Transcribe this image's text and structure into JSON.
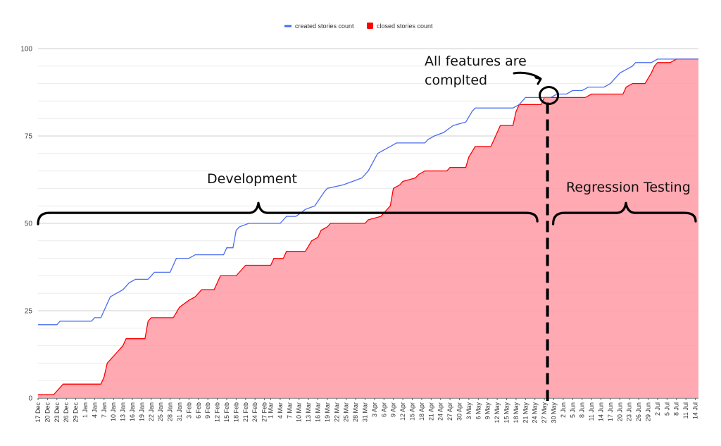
{
  "chart_data": {
    "type": "area",
    "x_range": [
      "17 Dec",
      "15 Jul"
    ],
    "x_tick_labels": [
      "17 Dec",
      "20 Dec",
      "23 Dec",
      "26 Dec",
      "29 Dec",
      "1 Jan",
      "4 Jan",
      "7 Jan",
      "10 Jan",
      "13 Jan",
      "16 Jan",
      "19 Jan",
      "22 Jan",
      "25 Jan",
      "28 Jan",
      "31 Jan",
      "3 Feb",
      "6 Feb",
      "9 Feb",
      "12 Feb",
      "15 Feb",
      "18 Feb",
      "21 Feb",
      "24 Feb",
      "27 Feb",
      "1 Mar",
      "4 Mar",
      "7 Mar",
      "10 Mar",
      "13 Mar",
      "16 Mar",
      "19 Mar",
      "22 Mar",
      "25 Mar",
      "28 Mar",
      "31 Mar",
      "3 Apr",
      "6 Apr",
      "9 Apr",
      "12 Apr",
      "15 Apr",
      "18 Apr",
      "21 Apr",
      "24 Apr",
      "27 Apr",
      "30 Apr",
      "3 May",
      "6 May",
      "9 May",
      "12 May",
      "15 May",
      "18 May",
      "21 May",
      "24 May",
      "27 May",
      "30 May",
      "2 Jun",
      "5 Jun",
      "8 Jun",
      "11 Jun",
      "14 Jun",
      "17 Jun",
      "20 Jun",
      "23 Jun",
      "26 Jun",
      "29 Jun",
      "2 Jul",
      "5 Jul",
      "8 Jul",
      "11 Jul",
      "14 Jul"
    ],
    "y_ticks": [
      0,
      25,
      50,
      75,
      100
    ],
    "ylim": [
      0,
      100
    ],
    "grid": true,
    "legend_position": "top-center",
    "series": [
      {
        "name": "created stories count",
        "color": "#4a6cf0",
        "style": "line",
        "points": [
          [
            "17 Dec",
            21
          ],
          [
            "23 Dec",
            21
          ],
          [
            "24 Dec",
            22
          ],
          [
            "3 Jan",
            22
          ],
          [
            "4 Jan",
            23
          ],
          [
            "6 Jan",
            23
          ],
          [
            "9 Jan",
            29
          ],
          [
            "11 Jan",
            30
          ],
          [
            "13 Jan",
            31
          ],
          [
            "15 Jan",
            33
          ],
          [
            "17 Jan",
            34
          ],
          [
            "21 Jan",
            34
          ],
          [
            "23 Jan",
            36
          ],
          [
            "28 Jan",
            36
          ],
          [
            "30 Jan",
            40
          ],
          [
            "3 Feb",
            40
          ],
          [
            "5 Feb",
            41
          ],
          [
            "14 Feb",
            41
          ],
          [
            "15 Feb",
            43
          ],
          [
            "17 Feb",
            43
          ],
          [
            "18 Feb",
            48
          ],
          [
            "19 Feb",
            49
          ],
          [
            "22 Feb",
            50
          ],
          [
            "4 Mar",
            50
          ],
          [
            "6 Mar",
            52
          ],
          [
            "9 Mar",
            52
          ],
          [
            "12 Mar",
            54
          ],
          [
            "15 Mar",
            55
          ],
          [
            "18 Mar",
            59
          ],
          [
            "19 Mar",
            60
          ],
          [
            "24 Mar",
            61
          ],
          [
            "27 Mar",
            62
          ],
          [
            "30 Mar",
            63
          ],
          [
            "1 Apr",
            65
          ],
          [
            "4 Apr",
            70
          ],
          [
            "6 Apr",
            71
          ],
          [
            "8 Apr",
            72
          ],
          [
            "10 Apr",
            73
          ],
          [
            "19 Apr",
            73
          ],
          [
            "20 Apr",
            74
          ],
          [
            "22 Apr",
            75
          ],
          [
            "25 Apr",
            76
          ],
          [
            "28 Apr",
            78
          ],
          [
            "2 May",
            79
          ],
          [
            "4 May",
            82
          ],
          [
            "5 May",
            83
          ],
          [
            "17 May",
            83
          ],
          [
            "19 May",
            84
          ],
          [
            "21 May",
            86
          ],
          [
            "29 May",
            86
          ],
          [
            "31 May",
            87
          ],
          [
            "3 Jun",
            87
          ],
          [
            "5 Jun",
            88
          ],
          [
            "8 Jun",
            88
          ],
          [
            "10 Jun",
            89
          ],
          [
            "15 Jun",
            89
          ],
          [
            "17 Jun",
            90
          ],
          [
            "20 Jun",
            93
          ],
          [
            "24 Jun",
            95
          ],
          [
            "25 Jun",
            96
          ],
          [
            "30 Jun",
            96
          ],
          [
            "2 Jul",
            97
          ],
          [
            "15 Jul",
            97
          ]
        ]
      },
      {
        "name": "closed stories count",
        "color": "#ff0000",
        "fill": "#ff9aa6",
        "style": "area",
        "points": [
          [
            "17 Dec",
            1
          ],
          [
            "22 Dec",
            1
          ],
          [
            "24 Dec",
            3
          ],
          [
            "25 Dec",
            4
          ],
          [
            "6 Jan",
            4
          ],
          [
            "7 Jan",
            6
          ],
          [
            "8 Jan",
            10
          ],
          [
            "10 Jan",
            12
          ],
          [
            "11 Jan",
            13
          ],
          [
            "13 Jan",
            15
          ],
          [
            "14 Jan",
            17
          ],
          [
            "20 Jan",
            17
          ],
          [
            "21 Jan",
            22
          ],
          [
            "22 Jan",
            23
          ],
          [
            "29 Jan",
            23
          ],
          [
            "31 Jan",
            26
          ],
          [
            "3 Feb",
            28
          ],
          [
            "5 Feb",
            29
          ],
          [
            "7 Feb",
            31
          ],
          [
            "11 Feb",
            31
          ],
          [
            "13 Feb",
            35
          ],
          [
            "18 Feb",
            35
          ],
          [
            "20 Feb",
            37
          ],
          [
            "21 Feb",
            38
          ],
          [
            "1 Mar",
            38
          ],
          [
            "2 Mar",
            40
          ],
          [
            "5 Mar",
            40
          ],
          [
            "6 Mar",
            42
          ],
          [
            "12 Mar",
            42
          ],
          [
            "14 Mar",
            45
          ],
          [
            "16 Mar",
            46
          ],
          [
            "17 Mar",
            48
          ],
          [
            "19 Mar",
            49
          ],
          [
            "20 Mar",
            50
          ],
          [
            "31 Mar",
            50
          ],
          [
            "1 Apr",
            51
          ],
          [
            "5 Apr",
            52
          ],
          [
            "8 Apr",
            55
          ],
          [
            "9 Apr",
            60
          ],
          [
            "11 Apr",
            61
          ],
          [
            "12 Apr",
            62
          ],
          [
            "16 Apr",
            63
          ],
          [
            "17 Apr",
            64
          ],
          [
            "19 Apr",
            65
          ],
          [
            "26 Apr",
            65
          ],
          [
            "27 Apr",
            66
          ],
          [
            "2 May",
            66
          ],
          [
            "3 May",
            69
          ],
          [
            "5 May",
            72
          ],
          [
            "10 May",
            72
          ],
          [
            "11 May",
            74
          ],
          [
            "13 May",
            78
          ],
          [
            "17 May",
            78
          ],
          [
            "18 May",
            82
          ],
          [
            "19 May",
            84
          ],
          [
            "26 May",
            84
          ],
          [
            "27 May",
            86
          ],
          [
            "9 Jun",
            86
          ],
          [
            "11 Jun",
            87
          ],
          [
            "21 Jun",
            87
          ],
          [
            "22 Jun",
            89
          ],
          [
            "24 Jun",
            90
          ],
          [
            "28 Jun",
            90
          ],
          [
            "30 Jun",
            93
          ],
          [
            "1 Jul",
            95
          ],
          [
            "2 Jul",
            96
          ],
          [
            "6 Jul",
            96
          ],
          [
            "8 Jul",
            97
          ],
          [
            "15 Jul",
            97
          ]
        ]
      }
    ],
    "annotations": [
      {
        "id": "all-features",
        "lines": [
          "All features are",
          "complted"
        ],
        "marker_date": "28 May",
        "marker_value": 87
      },
      {
        "id": "development",
        "text": "Development",
        "span": [
          "17 Dec",
          "27 May"
        ],
        "bracket_value": 53
      },
      {
        "id": "regression",
        "text": "Regression Testing",
        "span": [
          "28 May",
          "15 Jul"
        ],
        "bracket_value": 53
      }
    ]
  }
}
